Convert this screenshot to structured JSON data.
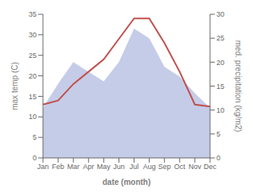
{
  "chart_data": {
    "type": "line",
    "xlabel": "date (month)",
    "ylabel": "max temp (C)",
    "y2label": "med. precipitation (kg/m2)",
    "categories": [
      "Jan",
      "Feb",
      "Mar",
      "Apr",
      "May",
      "Jun",
      "Jul",
      "Aug",
      "Sep",
      "Oct",
      "Nov",
      "Dec"
    ],
    "series": [
      {
        "type": "area",
        "axis": "y2",
        "color": "#c5cce8",
        "values": [
          10.5,
          15.5,
          20.0,
          18.0,
          16.0,
          20.0,
          27.0,
          25.0,
          19.0,
          17.0,
          13.5,
          10.5
        ]
      },
      {
        "type": "line",
        "axis": "y",
        "color": "#c0504d",
        "values": [
          13.0,
          14.0,
          18.0,
          21.0,
          24.0,
          29.0,
          34.0,
          34.0,
          28.0,
          21.0,
          13.0,
          12.5
        ]
      }
    ],
    "ylim": [
      0,
      35
    ],
    "yticks": [
      0,
      5,
      10,
      15,
      20,
      25,
      30,
      35
    ],
    "y2lim": [
      0,
      30
    ],
    "y2ticks": [
      0,
      5,
      10,
      15,
      20,
      25,
      30
    ],
    "grid": false
  }
}
